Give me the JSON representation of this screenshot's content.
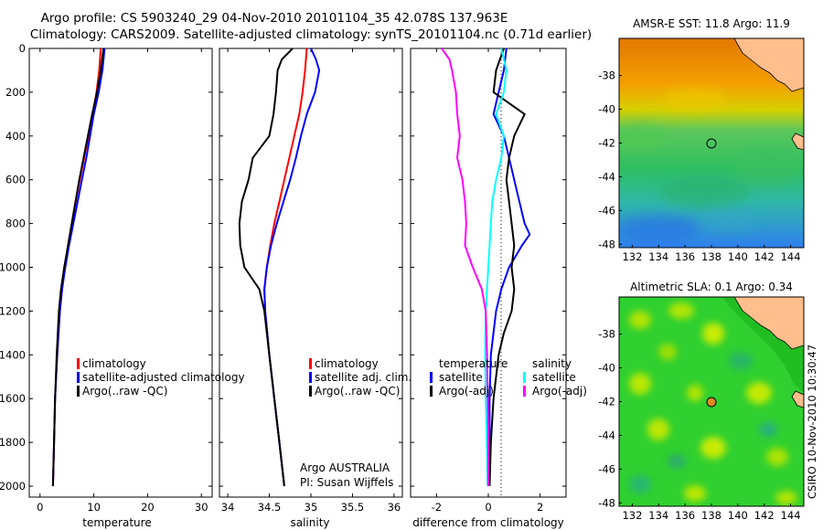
{
  "title": {
    "line1": "Argo profile: CS 5903240_29 04-Nov-2010 20101104_35 42.078S 137.963E",
    "line2": "Climatology: CARS2009. Satellite-adjusted climatology: synTS_20101104.nc (0.71d earlier)"
  },
  "colors": {
    "climatology": "#ff0000",
    "satellite": "#0000ff",
    "argo": "#000000",
    "sat_salinity": "#00ffff",
    "argo_salinity_adj": "#ff00ff",
    "land": "#ffbe8c",
    "sst_high": "#e27800",
    "sst_low": "#2f8fe8",
    "sla_base": "#2fd02f"
  },
  "chart_data": [
    {
      "type": "line",
      "name": "temperature-profile",
      "xlabel": "temperature",
      "ylim": [
        2050,
        0
      ],
      "xlim": [
        -2,
        32
      ],
      "xticks": [
        0,
        10,
        20,
        30
      ],
      "yticks": [
        0,
        200,
        400,
        600,
        800,
        1000,
        1200,
        1400,
        1600,
        1800,
        2000
      ],
      "legend": [
        "climatology",
        "satellite-adjusted climatology",
        "Argo(..raw -QC)"
      ],
      "series": [
        {
          "name": "climatology",
          "color": "#ff0000",
          "depth": [
            0,
            100,
            200,
            300,
            400,
            500,
            600,
            700,
            800,
            900,
            1000,
            1100,
            1200,
            1400,
            1600,
            1800,
            2000
          ],
          "values": [
            11.3,
            11.0,
            10.5,
            9.8,
            9.0,
            8.2,
            7.4,
            6.6,
            5.9,
            5.2,
            4.6,
            4.1,
            3.7,
            3.2,
            2.8,
            2.6,
            2.4
          ]
        },
        {
          "name": "satellite-adjusted climatology",
          "color": "#0000ff",
          "depth": [
            0,
            100,
            200,
            300,
            400,
            500,
            600,
            700,
            800,
            900,
            1000,
            1100,
            1200,
            1400,
            1600,
            1800,
            2000
          ],
          "values": [
            12.0,
            11.6,
            10.9,
            10.0,
            9.3,
            8.6,
            7.8,
            7.0,
            6.2,
            5.4,
            4.7,
            4.1,
            3.7,
            3.2,
            2.8,
            2.6,
            2.4
          ]
        },
        {
          "name": "Argo(..raw -QC)",
          "color": "#000000",
          "depth": [
            0,
            100,
            200,
            300,
            400,
            500,
            600,
            700,
            800,
            900,
            1000,
            1100,
            1200,
            1400,
            1600,
            1800,
            2000
          ],
          "values": [
            11.8,
            11.3,
            10.6,
            9.7,
            8.9,
            8.1,
            7.3,
            6.6,
            5.9,
            5.2,
            4.5,
            3.9,
            3.5,
            3.1,
            2.8,
            2.6,
            2.4
          ]
        }
      ]
    },
    {
      "type": "line",
      "name": "salinity-profile",
      "xlabel": "salinity",
      "ylim": [
        2050,
        0
      ],
      "xlim": [
        33.9,
        36.1
      ],
      "xticks": [
        34,
        34.5,
        35,
        35.5,
        36
      ],
      "legend": [
        "climatology",
        "satellite adj. clim.",
        "Argo(..raw -QC)"
      ],
      "annotation": [
        "Argo AUSTRALIA",
        "PI: Susan Wijffels"
      ],
      "series": [
        {
          "name": "climatology",
          "color": "#ff0000",
          "depth": [
            0,
            100,
            200,
            300,
            400,
            500,
            600,
            700,
            800,
            900,
            1000,
            1100,
            1200,
            1400,
            1600,
            1800,
            2000
          ],
          "values": [
            34.95,
            34.93,
            34.9,
            34.86,
            34.8,
            34.74,
            34.68,
            34.62,
            34.56,
            34.51,
            34.47,
            34.44,
            34.45,
            34.5,
            34.56,
            34.62,
            34.68
          ]
        },
        {
          "name": "satellite adj. clim.",
          "color": "#0000ff",
          "depth": [
            0,
            50,
            100,
            200,
            300,
            400,
            500,
            600,
            700,
            800,
            900,
            1000,
            1100,
            1200,
            1400,
            1600,
            1800,
            2000
          ],
          "values": [
            35.0,
            35.06,
            35.1,
            35.05,
            34.95,
            34.88,
            34.82,
            34.75,
            34.67,
            34.59,
            34.52,
            34.47,
            34.44,
            34.45,
            34.5,
            34.56,
            34.62,
            34.68
          ]
        },
        {
          "name": "Argo(..raw -QC)",
          "color": "#000000",
          "depth": [
            0,
            50,
            100,
            200,
            300,
            400,
            500,
            600,
            700,
            800,
            900,
            1000,
            1100,
            1200,
            1400,
            1600,
            1800,
            2000
          ],
          "values": [
            34.78,
            34.65,
            34.6,
            34.58,
            34.55,
            34.5,
            34.3,
            34.25,
            34.17,
            34.14,
            34.15,
            34.2,
            34.38,
            34.44,
            34.5,
            34.56,
            34.62,
            34.68
          ]
        }
      ]
    },
    {
      "type": "line",
      "name": "difference-profile",
      "xlabel": "difference from climatology",
      "ylim": [
        2050,
        0
      ],
      "xlim": [
        -3,
        3
      ],
      "xticks": [
        -2,
        0,
        2
      ],
      "legend_temperature": [
        "temperature",
        "satellite",
        "Argo(-adj)"
      ],
      "legend_salinity": [
        "salinity",
        "satellite",
        "Argo(-adj)"
      ],
      "series": [
        {
          "name": "satellite (temperature)",
          "color": "#0000ff",
          "depth": [
            0,
            100,
            200,
            300,
            400,
            500,
            600,
            700,
            800,
            850,
            900,
            1000,
            1100,
            1200,
            1400,
            1600,
            1800,
            2000
          ],
          "values": [
            0.7,
            0.6,
            0.4,
            0.2,
            0.6,
            0.8,
            1.0,
            1.2,
            1.4,
            1.6,
            1.3,
            0.8,
            0.5,
            0.3,
            0.1,
            0.05,
            0.05,
            0.02
          ]
        },
        {
          "name": "Argo(-adj) (temperature)",
          "color": "#000000",
          "depth": [
            0,
            100,
            200,
            300,
            400,
            500,
            600,
            700,
            800,
            900,
            1000,
            1100,
            1200,
            1300,
            1400,
            1600,
            1800,
            2000
          ],
          "values": [
            0.6,
            0.3,
            0.2,
            1.4,
            1.0,
            0.8,
            0.7,
            0.8,
            0.9,
            1.0,
            0.9,
            1.0,
            0.9,
            0.6,
            0.4,
            0.2,
            0.1,
            0.05
          ]
        },
        {
          "name": "satellite (salinity)",
          "color": "#00ffff",
          "depth": [
            0,
            100,
            200,
            300,
            400,
            500,
            600,
            700,
            800,
            900,
            1000,
            1100,
            1200,
            1400,
            1600,
            1800,
            2000
          ],
          "values": [
            0.5,
            0.7,
            0.6,
            0.3,
            0.6,
            0.5,
            0.3,
            0.15,
            0.1,
            0.05,
            0.0,
            -0.05,
            -0.1,
            -0.12,
            -0.1,
            -0.05,
            -0.02
          ]
        },
        {
          "name": "Argo(-adj) (salinity)",
          "color": "#ff00ff",
          "depth": [
            0,
            50,
            100,
            200,
            300,
            400,
            500,
            600,
            700,
            800,
            900,
            1000,
            1100,
            1200,
            1400,
            1600,
            1800,
            2000
          ],
          "values": [
            -1.8,
            -1.5,
            -1.4,
            -1.25,
            -1.2,
            -1.1,
            -1.2,
            -1.0,
            -0.9,
            -0.85,
            -0.9,
            -0.6,
            -0.25,
            -0.1,
            -0.05,
            -0.02,
            0.0,
            0.0
          ]
        }
      ]
    },
    {
      "type": "heatmap",
      "name": "sst-map",
      "title": "AMSR-E SST: 11.8 Argo: 11.9",
      "xticks": [
        132,
        134,
        136,
        138,
        140,
        142,
        144
      ],
      "yticks": [
        -38,
        -40,
        -42,
        -44,
        -46,
        -48
      ],
      "xlim": [
        131,
        145
      ],
      "ylim": [
        -48.2,
        -35.8
      ],
      "marker": {
        "lon": 137.963,
        "lat": -42.078
      },
      "colormap": "jet"
    },
    {
      "type": "heatmap",
      "name": "sla-map",
      "title": "Altimetric SLA: 0.1 Argo: 0.34",
      "xticks": [
        132,
        134,
        136,
        138,
        140,
        142,
        144
      ],
      "yticks": [
        -38,
        -40,
        -42,
        -44,
        -46,
        -48
      ],
      "xlim": [
        131,
        145
      ],
      "ylim": [
        -48.2,
        -35.8
      ],
      "marker": {
        "lon": 137.963,
        "lat": -42.078
      },
      "colormap": "jet"
    }
  ],
  "credit": "CSIRO 10-Nov-2010 10:30:47"
}
